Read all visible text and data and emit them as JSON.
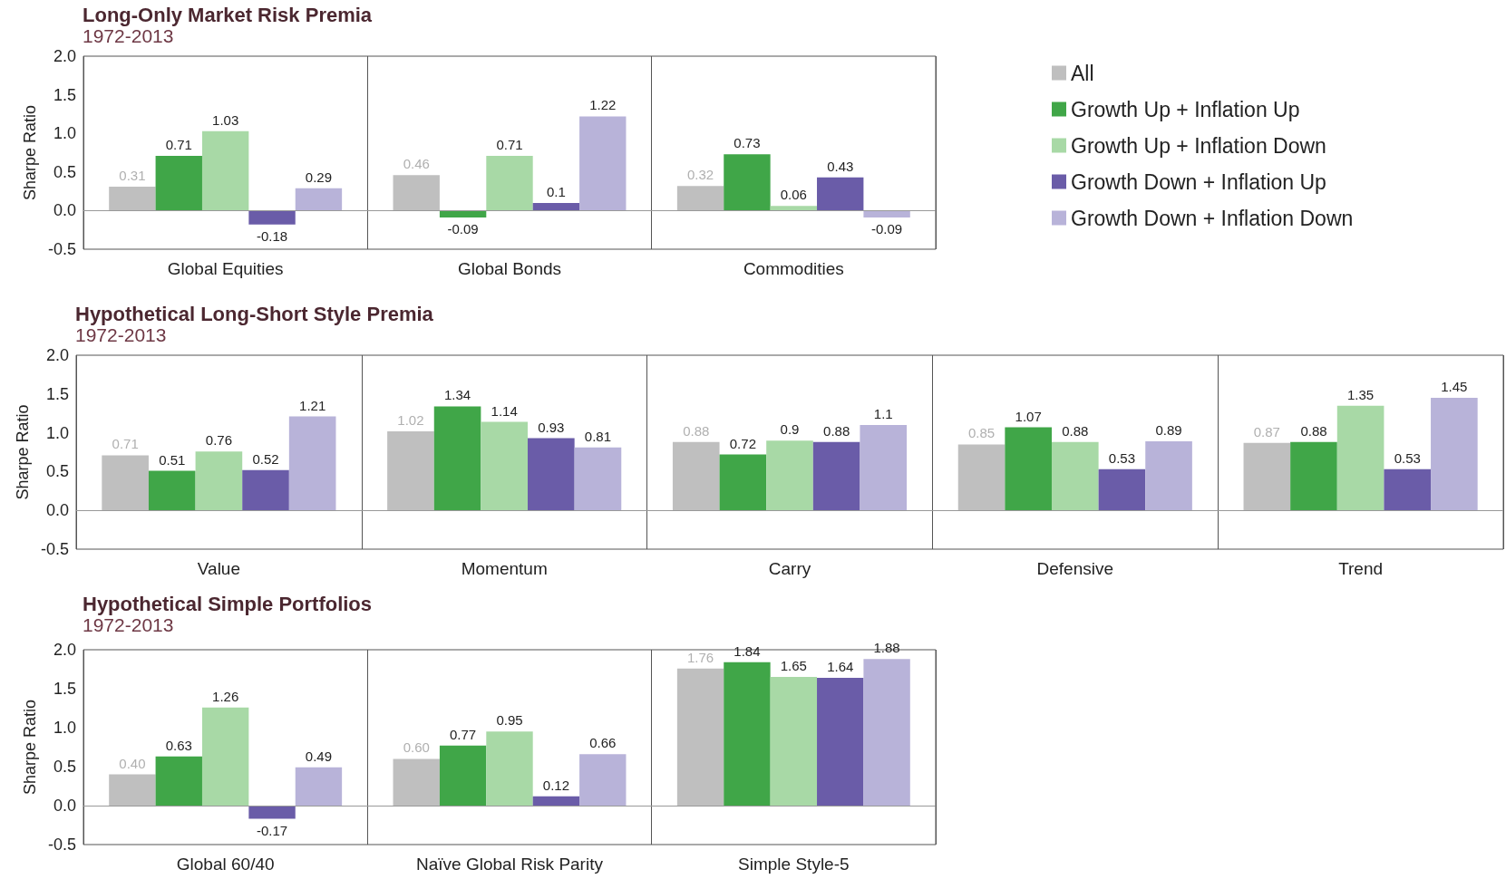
{
  "chart_data": [
    {
      "type": "bar",
      "title": "Long-Only Market Risk Premia",
      "subtitle": "1972-2013",
      "ylabel": "Sharpe Ratio",
      "categories": [
        "Global Equities",
        "Global Bonds",
        "Commodities"
      ],
      "ylim": [
        -0.5,
        2
      ],
      "yticks": [
        {
          "value": -0.5,
          "label": "-0.5"
        },
        {
          "value": 0,
          "label": "0.0"
        },
        {
          "value": 0.5,
          "label": "0.5"
        },
        {
          "value": 1,
          "label": "1.0"
        },
        {
          "value": 1.5,
          "label": "1.5"
        },
        {
          "value": 2,
          "label": "2.0"
        }
      ],
      "grid": "x",
      "legend": "right",
      "series": [
        {
          "name": "All",
          "color": "#bfbfbf",
          "values": [
            0.31,
            0.46,
            0.32
          ],
          "value_labels": [
            "0.31",
            "0.46",
            "0.32"
          ]
        },
        {
          "name": "Growth Up + Inflation Up",
          "color": "#40a648",
          "values": [
            0.71,
            -0.09,
            0.73
          ],
          "value_labels": [
            "0.71",
            "-0.09",
            "0.73"
          ]
        },
        {
          "name": "Growth Up + Inflation Down",
          "color": "#a8d9a6",
          "values": [
            1.03,
            0.71,
            0.06
          ],
          "value_labels": [
            "1.03",
            "0.71",
            "0.06"
          ]
        },
        {
          "name": "Growth Down + Inflation Up",
          "color": "#6a5ca8",
          "values": [
            -0.18,
            0.1,
            0.43
          ],
          "value_labels": [
            "-0.18",
            "0.1",
            "0.43"
          ]
        },
        {
          "name": "Growth Down + Inflation Down",
          "color": "#b8b3d9",
          "values": [
            0.29,
            1.22,
            -0.09
          ],
          "value_labels": [
            "0.29",
            "1.22",
            "-0.09"
          ]
        }
      ]
    },
    {
      "type": "bar",
      "title": "Hypothetical Long-Short Style Premia",
      "subtitle": "1972-2013",
      "ylabel": "Sharpe Ratio",
      "categories": [
        "Value",
        "Momentum",
        "Carry",
        "Defensive",
        "Trend"
      ],
      "ylim": [
        -0.5,
        2
      ],
      "yticks": [
        {
          "value": -0.5,
          "label": "-0.5"
        },
        {
          "value": 0,
          "label": "0.0"
        },
        {
          "value": 0.5,
          "label": "0.5"
        },
        {
          "value": 1,
          "label": "1.0"
        },
        {
          "value": 1.5,
          "label": "1.5"
        },
        {
          "value": 2,
          "label": "2.0"
        }
      ],
      "grid": "x",
      "series": [
        {
          "color": "#bfbfbf",
          "values": [
            0.71,
            1.02,
            0.88,
            0.85,
            0.87
          ],
          "value_labels": [
            "0.71",
            "1.02",
            "0.88",
            "0.85",
            "0.87"
          ]
        },
        {
          "color": "#40a648",
          "values": [
            0.51,
            1.34,
            0.72,
            1.07,
            0.88
          ],
          "value_labels": [
            "0.51",
            "1.34",
            "0.72",
            "1.07",
            "0.88"
          ]
        },
        {
          "color": "#a8d9a6",
          "values": [
            0.76,
            1.14,
            0.9,
            0.88,
            1.35
          ],
          "value_labels": [
            "0.76",
            "1.14",
            "0.9",
            "0.88",
            "1.35"
          ]
        },
        {
          "color": "#6a5ca8",
          "values": [
            0.52,
            0.93,
            0.88,
            0.53,
            0.53
          ],
          "value_labels": [
            "0.52",
            "0.93",
            "0.88",
            "0.53",
            "0.53"
          ]
        },
        {
          "color": "#b8b3d9",
          "values": [
            1.21,
            0.81,
            1.1,
            0.89,
            1.45
          ],
          "value_labels": [
            "1.21",
            "0.81",
            "1.1",
            "0.89",
            "1.45"
          ]
        }
      ]
    },
    {
      "type": "bar",
      "title": "Hypothetical Simple Portfolios",
      "subtitle": "1972-2013",
      "ylabel": "Sharpe Ratio",
      "categories": [
        "Global 60/40",
        "Naïve Global Risk Parity",
        "Simple Style-5"
      ],
      "ylim": [
        -0.5,
        2
      ],
      "yticks": [
        {
          "value": -0.5,
          "label": "-0.5"
        },
        {
          "value": 0,
          "label": "0.0"
        },
        {
          "value": 0.5,
          "label": "0.5"
        },
        {
          "value": 1,
          "label": "1.0"
        },
        {
          "value": 1.5,
          "label": "1.5"
        },
        {
          "value": 2,
          "label": "2.0"
        }
      ],
      "grid": "x",
      "series": [
        {
          "color": "#bfbfbf",
          "values": [
            0.4,
            0.6,
            1.76
          ],
          "value_labels": [
            "0.40",
            "0.60",
            "1.76"
          ]
        },
        {
          "color": "#40a648",
          "values": [
            0.63,
            0.77,
            1.84
          ],
          "value_labels": [
            "0.63",
            "0.77",
            "1.84"
          ]
        },
        {
          "color": "#a8d9a6",
          "values": [
            1.26,
            0.95,
            1.65
          ],
          "value_labels": [
            "1.26",
            "0.95",
            "1.65"
          ]
        },
        {
          "color": "#6a5ca8",
          "values": [
            -0.17,
            0.12,
            1.64
          ],
          "value_labels": [
            "-0.17",
            "0.12",
            "1.64"
          ]
        },
        {
          "color": "#b8b3d9",
          "values": [
            0.49,
            0.66,
            1.88
          ],
          "value_labels": [
            "0.49",
            "0.66",
            "1.88"
          ]
        }
      ]
    }
  ]
}
